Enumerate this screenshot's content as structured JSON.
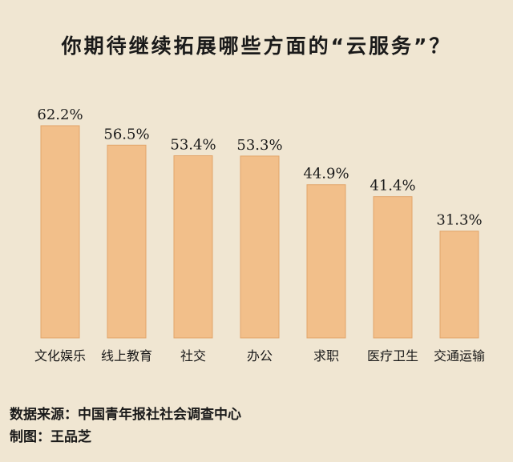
{
  "title": "你期待继续拓展哪些方面的“云服务”？",
  "footer": {
    "source": "数据来源：中国青年报社社会调查中心",
    "credit": "制图：王品芝"
  },
  "chart_data": {
    "type": "bar",
    "title": "你期待继续拓展哪些方面的“云服务”？",
    "categories": [
      "文化娱乐",
      "线上教育",
      "社交",
      "办公",
      "求职",
      "医疗卫生",
      "交通运输"
    ],
    "values": [
      62.2,
      56.5,
      53.4,
      53.3,
      44.9,
      41.4,
      31.3
    ],
    "value_labels": [
      "62.2%",
      "56.5%",
      "53.4%",
      "53.3%",
      "44.9%",
      "41.4%",
      "31.3%"
    ],
    "unit": "%",
    "ylim": [
      0,
      62.2
    ],
    "grid": false,
    "legend": "none",
    "colors": {
      "bar": "#f2bf8a",
      "bar_edge": "#e2a46a",
      "background": "#f0e6d2"
    }
  }
}
